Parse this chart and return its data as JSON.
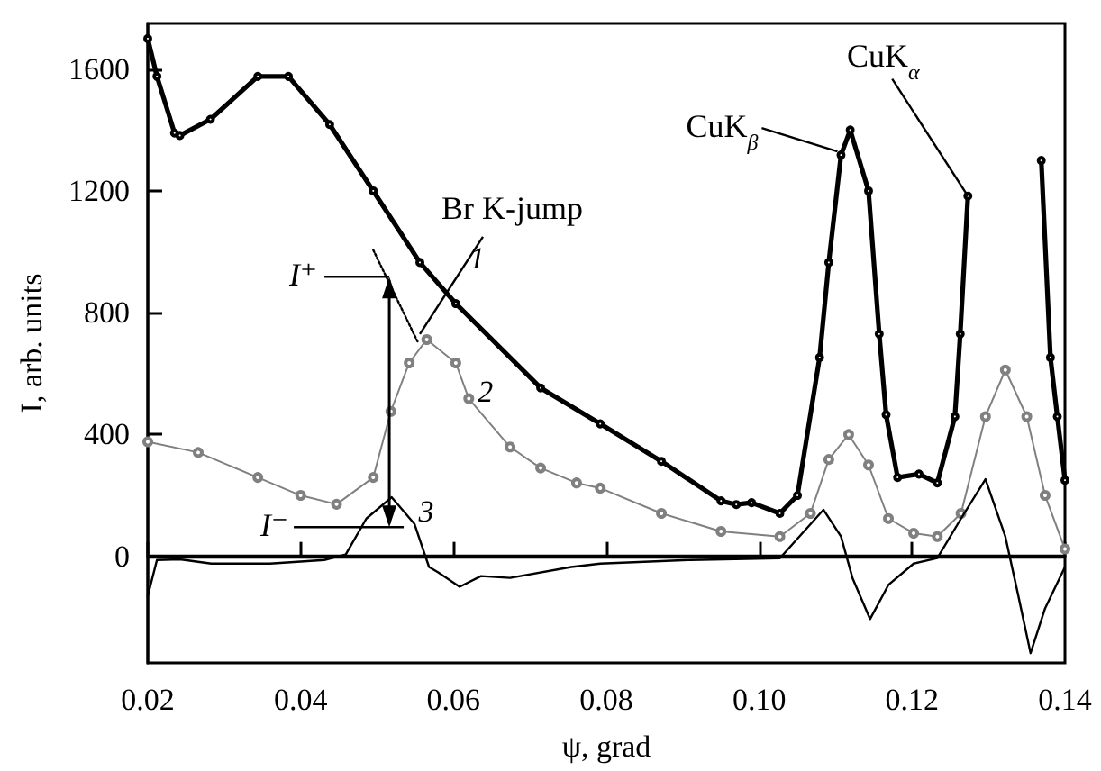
{
  "chart_data": {
    "type": "line",
    "xlabel": "ψ, grad",
    "ylabel": "I, arb. units",
    "xlim": [
      0.02,
      0.14
    ],
    "xticks": [
      0.02,
      0.04,
      0.06,
      0.08,
      {
        "value": 0.1,
        "label": "0.10"
      },
      0.12,
      0.14
    ],
    "ylim": [
      -350,
      1750
    ],
    "yticks": [
      0,
      400,
      800,
      1200,
      1600
    ],
    "series": [
      {
        "name": "1",
        "color": "#000000",
        "marker": "circle",
        "x": [
          0.02,
          0.0212,
          0.0235,
          0.0242,
          0.0282,
          0.0344,
          0.0384,
          0.0438,
          0.0495,
          0.0556,
          0.0603,
          0.0714,
          0.0792,
          0.0872,
          0.095,
          0.097,
          0.099,
          0.1027,
          0.105,
          0.1079,
          0.1091,
          0.1107,
          0.1119,
          0.1143,
          0.1157,
          0.1166,
          0.1181,
          0.1209,
          0.1233,
          0.1256,
          0.1263,
          0.1273,
          0.1282,
          0.132,
          0.1362,
          0.1369,
          0.1381,
          0.139,
          0.14
        ],
        "values": [
          1700,
          1576,
          1390,
          1382,
          1435,
          1576,
          1576,
          1418,
          1200,
          965,
          830,
          553,
          435,
          312,
          182,
          170,
          176,
          141,
          200,
          653,
          965,
          1318,
          1400,
          1200,
          730,
          465,
          259,
          270,
          241,
          459,
          730,
          1183,
          null,
          null,
          null,
          1300,
          653,
          459,
          250
        ]
      },
      {
        "name": "2",
        "color": "#808080",
        "marker": "circle",
        "x": [
          0.02,
          0.0266,
          0.0344,
          0.04,
          0.0447,
          0.0495,
          0.0518,
          0.0542,
          0.0565,
          0.0603,
          0.062,
          0.0674,
          0.0714,
          0.0761,
          0.0792,
          0.0872,
          0.095,
          0.1027,
          0.1067,
          0.1091,
          0.1117,
          0.1143,
          0.1169,
          0.1202,
          0.1233,
          0.1264,
          0.1296,
          0.1322,
          0.135,
          0.1374,
          0.14
        ],
        "values": [
          376,
          341,
          259,
          200,
          171,
          259,
          476,
          635,
          712,
          635,
          518,
          359,
          290,
          241,
          224,
          141,
          82,
          65,
          141,
          318,
          400,
          300,
          124,
          76,
          65,
          141,
          459,
          612,
          459,
          200,
          24
        ]
      },
      {
        "name": "3",
        "color": "#000000",
        "marker": "none",
        "x": [
          0.02,
          0.0212,
          0.0242,
          0.0283,
          0.036,
          0.0431,
          0.0459,
          0.0486,
          0.0519,
          0.0549,
          0.0568,
          0.058,
          0.0608,
          0.0636,
          0.0674,
          0.0754,
          0.0792,
          0.091,
          0.1027,
          0.1084,
          0.1107,
          0.1122,
          0.1145,
          0.1169,
          0.1202,
          0.1233,
          0.1264,
          0.1296,
          0.1322,
          0.1339,
          0.1355,
          0.1374,
          0.14
        ],
        "values": [
          -130,
          -12,
          -10,
          -24,
          -24,
          -12,
          6,
          124,
          194,
          106,
          -35,
          -53,
          -100,
          -65,
          -71,
          -35,
          -24,
          -12,
          -6,
          153,
          65,
          -71,
          -206,
          -94,
          -24,
          -6,
          124,
          253,
          65,
          -130,
          -318,
          -171,
          -35
        ]
      },
      {
        "color": "#000000",
        "marker": "none",
        "line_style": "dotted",
        "x": [
          0.0495,
          0.0553
        ],
        "values": [
          1006,
          705
        ]
      }
    ],
    "ref_lines": [
      {
        "axis": "y",
        "value": 0,
        "color": "#000000"
      }
    ],
    "annotations": [
      {
        "text": "Br K-jump",
        "x": 0.0556,
        "y": 730
      },
      {
        "text": "CuK$_{β}$",
        "x": 0.1107,
        "y": 1318
      },
      {
        "text": "CuK$_{α}$",
        "x": 0.1273,
        "y": 1183
      },
      {
        "text": "I⁺",
        "x": 0.0516,
        "y": 918
      },
      "I⁻"
    ]
  }
}
